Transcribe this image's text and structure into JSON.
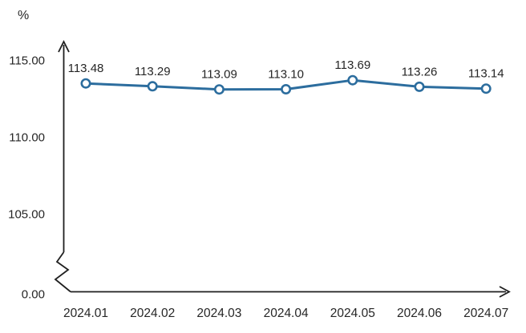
{
  "chart_data": {
    "type": "line",
    "title": "",
    "unit_label": "%",
    "categories": [
      "2024.01",
      "2024.02",
      "2024.03",
      "2024.04",
      "2024.05",
      "2024.06",
      "2024.07"
    ],
    "values": [
      113.48,
      113.29,
      113.09,
      113.1,
      113.69,
      113.26,
      113.14
    ],
    "data_labels": [
      "113.48",
      "113.29",
      "113.09",
      "113.10",
      "113.69",
      "113.26",
      "113.14"
    ],
    "y_ticks": [
      {
        "label": "115.00",
        "value": 115
      },
      {
        "label": "110.00",
        "value": 110
      },
      {
        "label": "105.00",
        "value": 105
      },
      {
        "label": "0.00",
        "value": 0
      }
    ],
    "axis_break": "zigzag between 0.00 and 105.00 on y-axis",
    "ylim": [
      105,
      115
    ],
    "grid": false,
    "legend": "none",
    "line_color": "#2c6d9e",
    "marker_fill": "#ffffff",
    "axis_color": "#1f1f1f",
    "text_color": "#262626"
  }
}
